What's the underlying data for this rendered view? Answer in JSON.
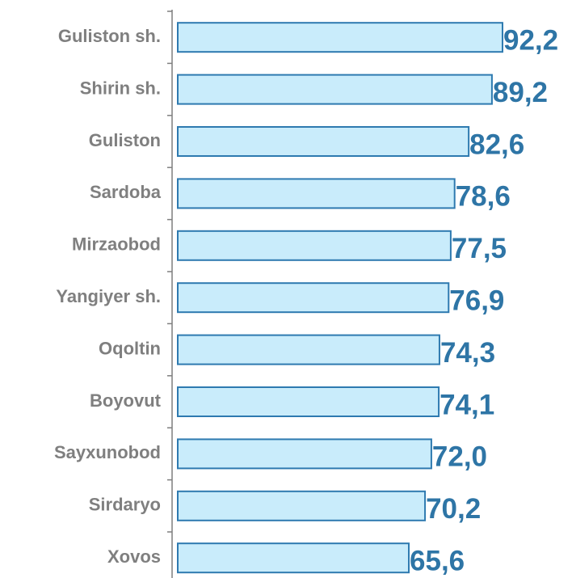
{
  "chart_data": {
    "type": "barh",
    "categories": [
      "Guliston sh.",
      "Shirin sh.",
      "Guliston",
      "Sardoba",
      "Mirzaobod",
      "Yangiyer sh.",
      "Oqoltin",
      "Boyovut",
      "Sayxunobod",
      "Sirdaryo",
      "Xovos"
    ],
    "values": [
      92.2,
      89.2,
      82.6,
      78.6,
      77.5,
      76.9,
      74.3,
      74.1,
      72.0,
      70.2,
      65.6
    ],
    "value_labels": [
      "92,2",
      "89,2",
      "82,6",
      "78,6",
      "77,5",
      "76,9",
      "74,3",
      "74,1",
      "72,0",
      "70,2",
      "65,6"
    ],
    "color": "#c9ecfb",
    "edge_color": "#2e7ab0",
    "xlim": [
      0,
      100
    ]
  }
}
